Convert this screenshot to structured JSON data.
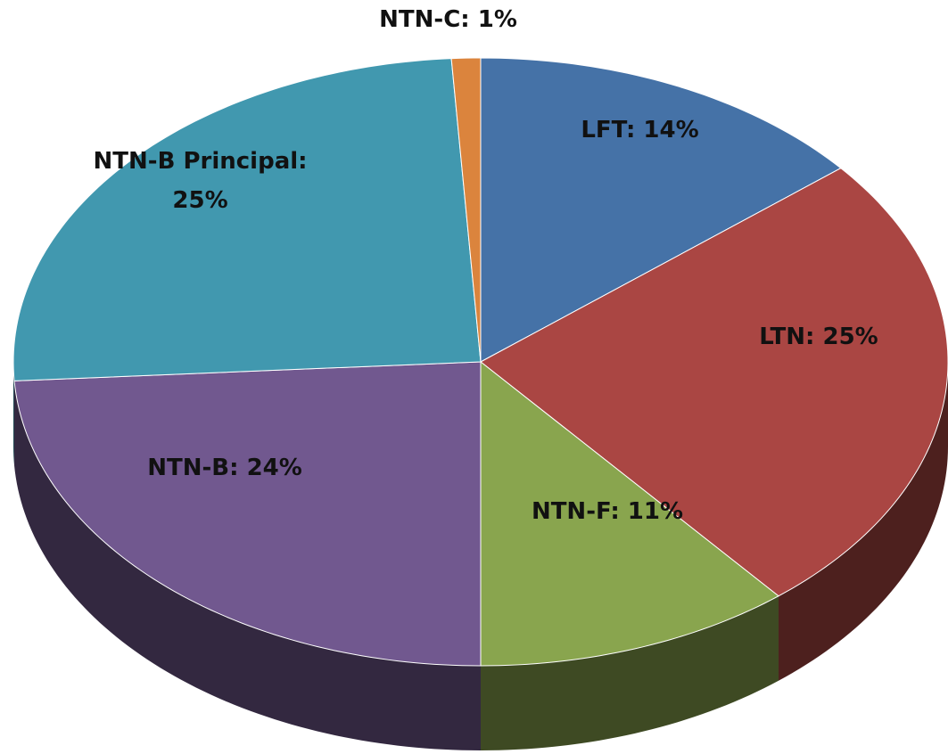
{
  "chart_data": {
    "type": "pie3d",
    "values": [
      14,
      25,
      11,
      24,
      25,
      1
    ],
    "value_labels": [
      "LFT: 14%",
      "LTN: 25%",
      "NTN-F: 11%",
      "NTN-B: 24%",
      "NTN-B Principal: 25%",
      "NTN-C: 1%"
    ],
    "colors": [
      "#4572a7",
      "#aa4643",
      "#89a54e",
      "#71588f",
      "#4198af",
      "#db843d"
    ]
  }
}
